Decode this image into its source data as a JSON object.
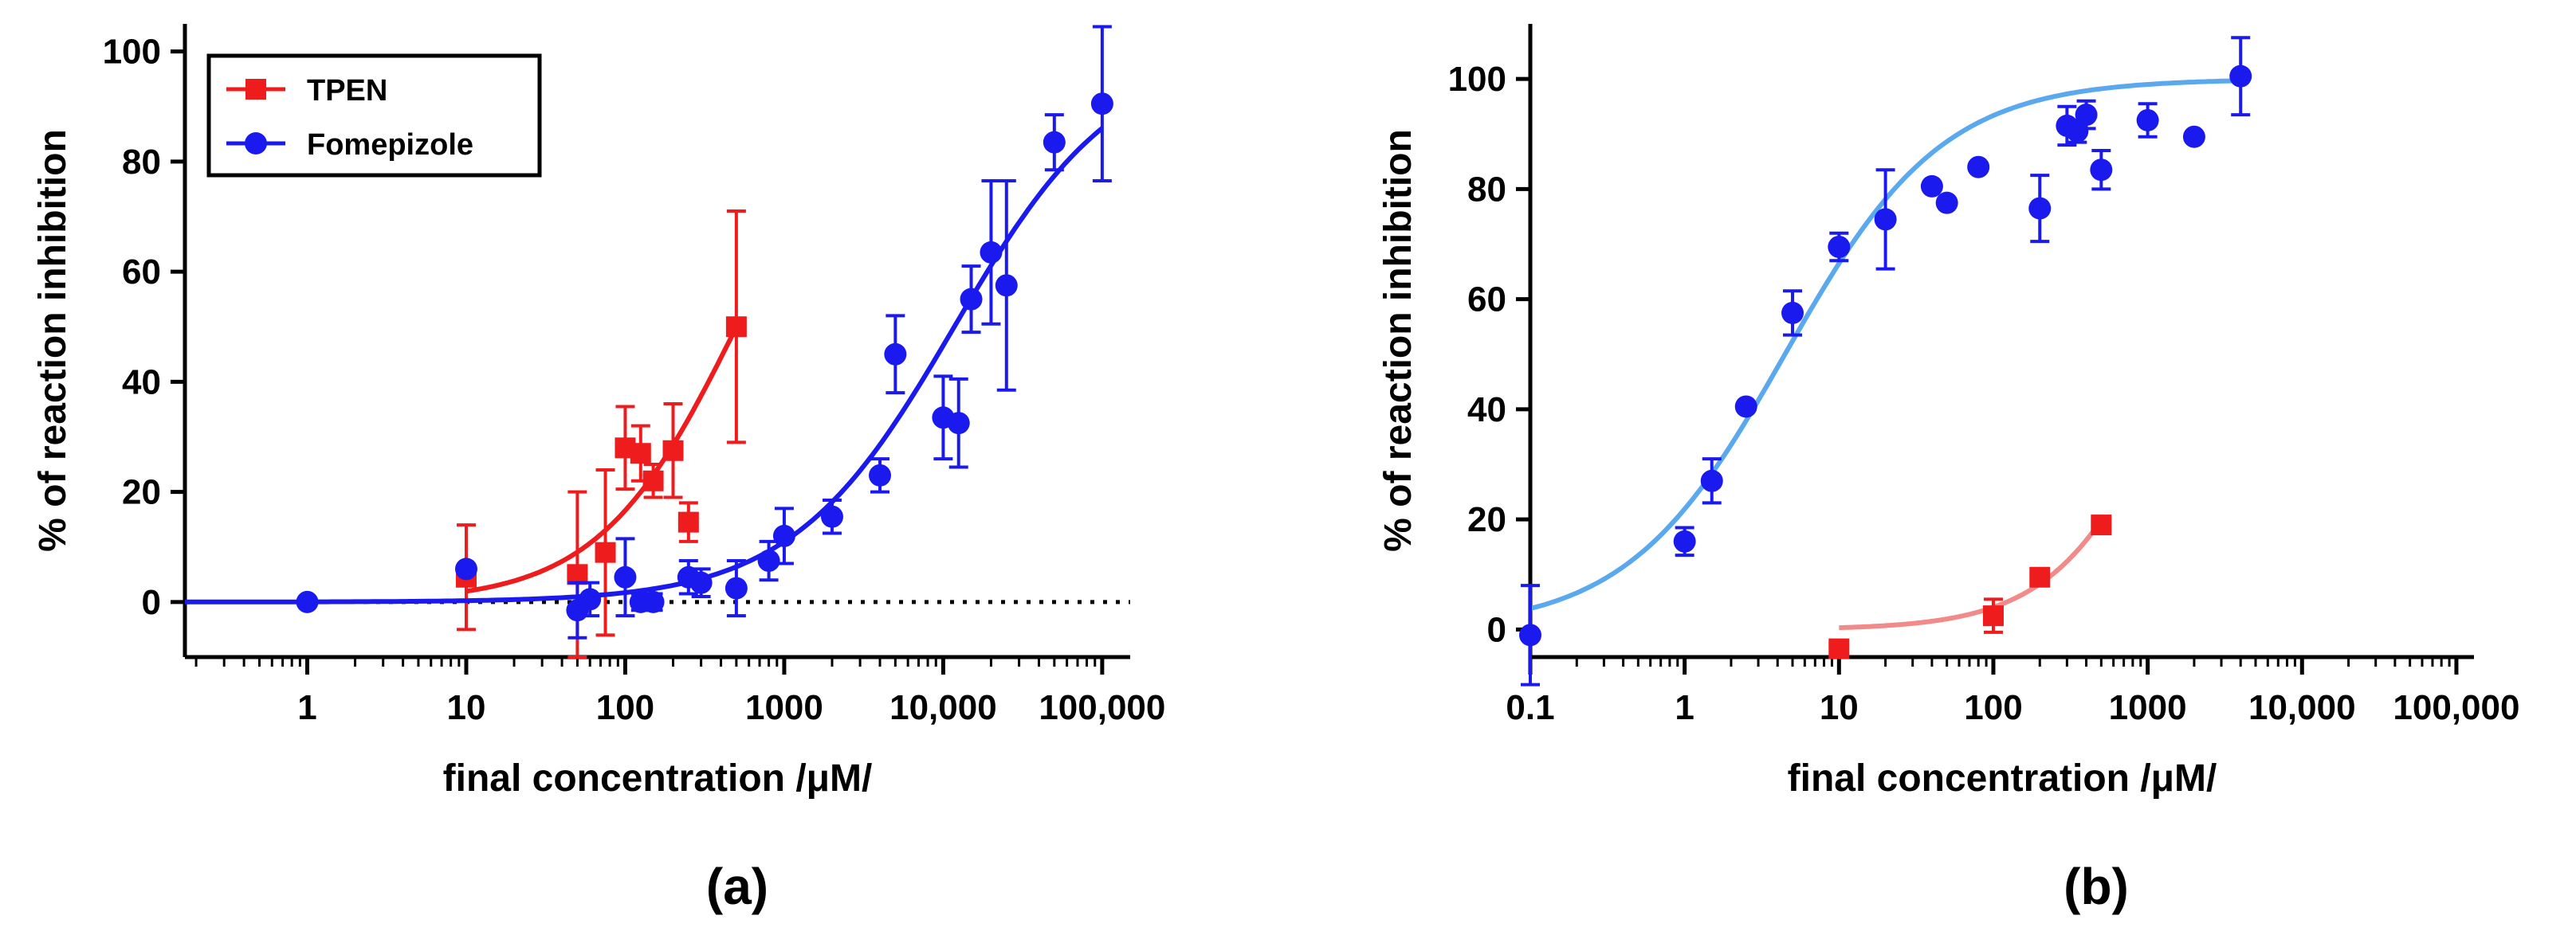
{
  "chart_data": [
    {
      "panel": "(a)",
      "type": "scatter",
      "x_scale": "log",
      "xlabel": "final concentration /μM/",
      "ylabel": "% of reaction inhibition",
      "xlim": [
        0.17,
        150000
      ],
      "ylim": [
        -10,
        105
      ],
      "x_ticks": [
        1,
        10,
        100,
        1000,
        10000,
        100000
      ],
      "x_tick_labels": [
        "1",
        "10",
        "100",
        "1000",
        "10,000",
        "100,000"
      ],
      "y_ticks": [
        0,
        20,
        40,
        60,
        80,
        100
      ],
      "y_tick_labels": [
        "0",
        "20",
        "40",
        "60",
        "80",
        "100"
      ],
      "zero_line": "dotted",
      "legend_position": "top-left",
      "series": [
        {
          "name": "TPEN",
          "marker": "square",
          "color": "#ee1c1c",
          "points": [
            {
              "x": 10,
              "y": 4.5,
              "err": 9.5
            },
            {
              "x": 50,
              "y": 5,
              "err": 15
            },
            {
              "x": 75,
              "y": 9,
              "err": 15
            },
            {
              "x": 100,
              "y": 28,
              "err": 7.5
            },
            {
              "x": 125,
              "y": 27,
              "err": 5
            },
            {
              "x": 150,
              "y": 22,
              "err": 3
            },
            {
              "x": 200,
              "y": 27.5,
              "err": 8.5
            },
            {
              "x": 250,
              "y": 14.5,
              "err": 3.5
            },
            {
              "x": 500,
              "y": 50,
              "err": 21
            }
          ],
          "fit": {
            "bottom": 0,
            "top": 100,
            "log_ec50": 2.7,
            "hill": 1.0,
            "x_range": [
              10,
              500
            ]
          }
        },
        {
          "name": "Fomepizole",
          "marker": "circle",
          "color": "#1a1aee",
          "points": [
            {
              "x": 1,
              "y": 0,
              "err": 0
            },
            {
              "x": 10,
              "y": 6,
              "err": 0
            },
            {
              "x": 50,
              "y": -1.5,
              "err": 5
            },
            {
              "x": 60,
              "y": 0.5,
              "err": 3
            },
            {
              "x": 100,
              "y": 4.5,
              "err": 7
            },
            {
              "x": 125,
              "y": 0,
              "err": 1.5
            },
            {
              "x": 150,
              "y": 0,
              "err": 1.5
            },
            {
              "x": 250,
              "y": 4.5,
              "err": 3
            },
            {
              "x": 300,
              "y": 3.5,
              "err": 2.5
            },
            {
              "x": 500,
              "y": 2.5,
              "err": 5
            },
            {
              "x": 800,
              "y": 7.5,
              "err": 3.5
            },
            {
              "x": 1000,
              "y": 12,
              "err": 5
            },
            {
              "x": 2000,
              "y": 15.5,
              "err": 3
            },
            {
              "x": 4000,
              "y": 23,
              "err": 3
            },
            {
              "x": 5000,
              "y": 45,
              "err": 7
            },
            {
              "x": 10000,
              "y": 33.5,
              "err": 7.5
            },
            {
              "x": 12500,
              "y": 32.5,
              "err": 8
            },
            {
              "x": 15000,
              "y": 55,
              "err": 6
            },
            {
              "x": 20000,
              "y": 63.5,
              "err": 13
            },
            {
              "x": 25000,
              "y": 57.5,
              "err": 19
            },
            {
              "x": 50000,
              "y": 83.5,
              "err": 5
            },
            {
              "x": 100000,
              "y": 90.5,
              "err": 14
            }
          ],
          "fit": {
            "bottom": 0,
            "top": 100,
            "log_ec50": 4.07,
            "hill": 0.85,
            "x_range": [
              0.17,
              100000
            ]
          }
        }
      ]
    },
    {
      "panel": "(b)",
      "type": "scatter",
      "x_scale": "log",
      "xlabel": "final concentration /μM/",
      "ylabel": "% of reaction inhibition",
      "xlim": [
        0.1,
        130000
      ],
      "ylim": [
        -5,
        110
      ],
      "x_ticks": [
        0.1,
        1,
        10,
        100,
        1000,
        10000,
        100000
      ],
      "x_tick_labels": [
        "0.1",
        "1",
        "10",
        "100",
        "1000",
        "10,000",
        "100,000"
      ],
      "y_ticks": [
        0,
        20,
        40,
        60,
        80,
        100
      ],
      "y_tick_labels": [
        "0",
        "20",
        "40",
        "60",
        "80",
        "100"
      ],
      "series": [
        {
          "name": "Fomepizole",
          "marker": "circle",
          "color": "#1a1aee",
          "fit_color": "#5aa8ee",
          "points": [
            {
              "x": 0.1,
              "y": -1,
              "err": 9
            },
            {
              "x": 1,
              "y": 16,
              "err": 2.5
            },
            {
              "x": 1.5,
              "y": 27,
              "err": 4
            },
            {
              "x": 2.5,
              "y": 40.5,
              "err": 0
            },
            {
              "x": 5,
              "y": 57.5,
              "err": 4
            },
            {
              "x": 10,
              "y": 69.5,
              "err": 2.5
            },
            {
              "x": 20,
              "y": 74.5,
              "err": 9
            },
            {
              "x": 40,
              "y": 80.5,
              "err": 0
            },
            {
              "x": 50,
              "y": 77.5,
              "err": 0
            },
            {
              "x": 80,
              "y": 84,
              "err": 0
            },
            {
              "x": 200,
              "y": 76.5,
              "err": 6
            },
            {
              "x": 300,
              "y": 91.5,
              "err": 3.5
            },
            {
              "x": 350,
              "y": 90.5,
              "err": 2
            },
            {
              "x": 400,
              "y": 93.5,
              "err": 2.5
            },
            {
              "x": 500,
              "y": 83.5,
              "err": 3.5
            },
            {
              "x": 1000,
              "y": 92.5,
              "err": 3
            },
            {
              "x": 2000,
              "y": 89.5,
              "err": 0
            },
            {
              "x": 4000,
              "y": 100.5,
              "err": 7
            }
          ],
          "fit": {
            "bottom": 0,
            "top": 100,
            "log_ec50": 0.65,
            "hill": 0.85,
            "x_range": [
              0.1,
              4000
            ]
          }
        },
        {
          "name": "TPEN",
          "marker": "square",
          "color": "#ee1c1c",
          "fit_color": "#f28a8a",
          "points": [
            {
              "x": 10,
              "y": -3.5,
              "err": 0
            },
            {
              "x": 100,
              "y": 2.5,
              "err": 3
            },
            {
              "x": 200,
              "y": 9.5,
              "err": 0
            },
            {
              "x": 500,
              "y": 19,
              "err": 0
            }
          ],
          "fit": {
            "bottom": 0,
            "top": 100,
            "log_ec50": 3.25,
            "hill": 1.1,
            "x_range": [
              10,
              500
            ]
          }
        }
      ]
    }
  ]
}
